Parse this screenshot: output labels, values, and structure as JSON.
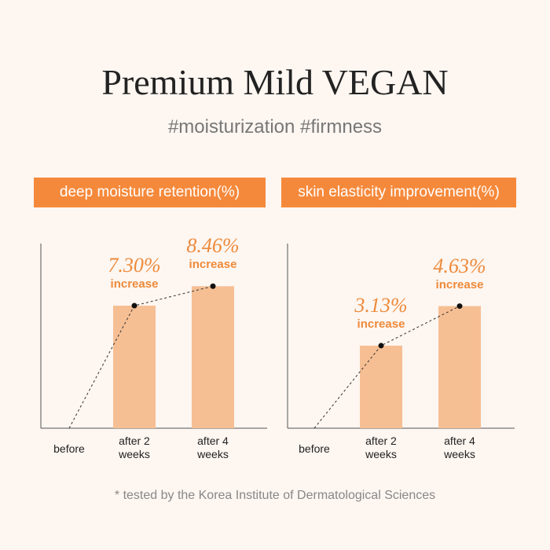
{
  "title": "Premium Mild VEGAN",
  "subtitle": "#moisturization #firmness",
  "footnote": "* tested by the Korea Institute of Dermatological Sciences",
  "chart_data": [
    {
      "type": "bar",
      "title": "deep moisture retention(%)",
      "categories": [
        "before",
        "after 2 weeks",
        "after 4 weeks"
      ],
      "values": [
        0,
        7.3,
        8.46
      ],
      "value_labels": [
        null,
        "7.30%",
        "8.46%"
      ],
      "value_note": "increase",
      "color": "#f6bf93",
      "ylim": [
        0,
        11
      ]
    },
    {
      "type": "bar",
      "title": "skin elasticity improvement(%)",
      "categories": [
        "before",
        "after 2 weeks",
        "after 4 weeks"
      ],
      "values": [
        0,
        3.13,
        4.63
      ],
      "value_labels": [
        null,
        "3.13%",
        "4.63%"
      ],
      "value_note": "increase",
      "color": "#f6bf93",
      "ylim": [
        0,
        7
      ]
    }
  ]
}
